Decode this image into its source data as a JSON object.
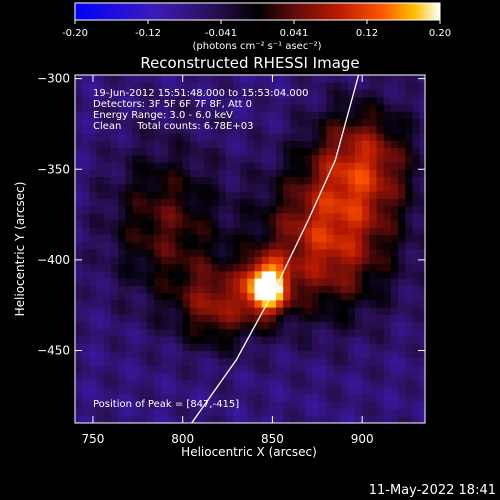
{
  "colorbar": {
    "ticks": [
      "-0.20",
      "-0.12",
      "-0.041",
      "0.041",
      "0.12",
      "0.20"
    ],
    "units": "(photons cm⁻² s⁻¹ asec⁻²)",
    "colormap": [
      "#0000ff",
      "#3d1bb8",
      "#2a0f55",
      "#000000",
      "#5e0b0b",
      "#b81a00",
      "#ff5500",
      "#ffc000",
      "#ffffff"
    ]
  },
  "title": "Reconstructed RHESSI Image",
  "annotations": {
    "time_range": "19-Jun-2012 15:51:48.000 to 15:53:04.000",
    "detectors": "Detectors: 3F 5F 6F 7F 8F, Att 0",
    "energy": "Energy Range: 3.0 - 6.0 keV",
    "clean_total": "Clean     Total counts: 6.78E+03",
    "peak": "Position of Peak = [847,-415]"
  },
  "timestamp": "11-May-2022 18:41",
  "chart_data": {
    "type": "heatmap",
    "title": "Reconstructed RHESSI Image",
    "xlabel": "Heliocentric X (arcsec)",
    "ylabel": "Heliocentric Y (arcsec)",
    "xlim": [
      740,
      935
    ],
    "ylim": [
      -490,
      -298
    ],
    "xticks": [
      750,
      800,
      850,
      900
    ],
    "yticks": [
      -300,
      -350,
      -400,
      -450
    ],
    "value_range": [
      -0.2,
      0.2
    ],
    "peak": {
      "x": 847,
      "y": -415,
      "value": 0.2
    },
    "sources": [
      {
        "x": 847,
        "y": -415,
        "peak": 0.2,
        "sx": 8,
        "sy": 10
      },
      {
        "x": 880,
        "y": -390,
        "peak": 0.09,
        "sx": 26,
        "sy": 28
      },
      {
        "x": 900,
        "y": -345,
        "peak": 0.07,
        "sx": 20,
        "sy": 22
      },
      {
        "x": 820,
        "y": -425,
        "peak": 0.05,
        "sx": 16,
        "sy": 16
      },
      {
        "x": 790,
        "y": -380,
        "peak": 0.03,
        "sx": 22,
        "sy": 30
      }
    ],
    "limb": [
      {
        "x": 805,
        "y": -490
      },
      {
        "x": 830,
        "y": -455
      },
      {
        "x": 852,
        "y": -415
      },
      {
        "x": 870,
        "y": -378
      },
      {
        "x": 885,
        "y": -345
      },
      {
        "x": 898,
        "y": -298
      }
    ]
  }
}
